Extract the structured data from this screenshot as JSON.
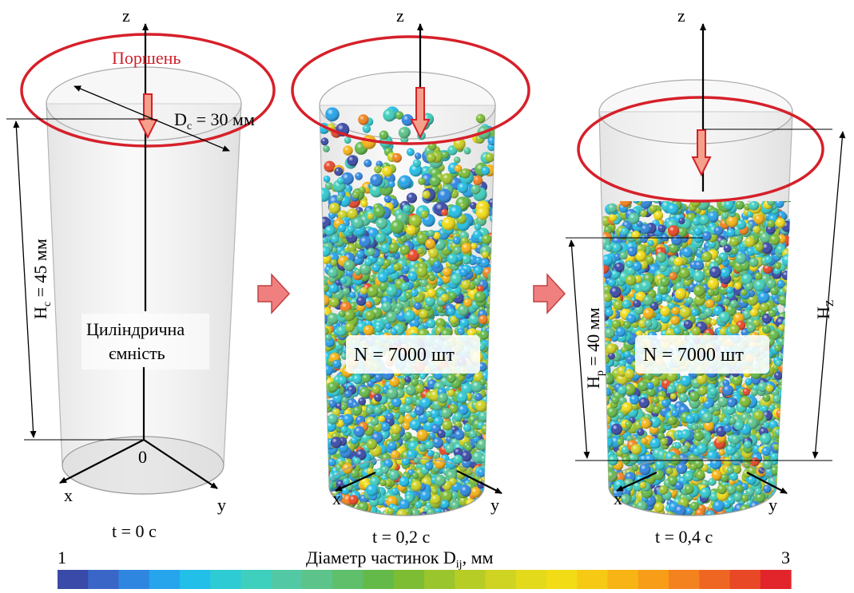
{
  "panels": [
    {
      "id": "t0",
      "time_label": "t = 0 с",
      "piston_label": "Поршень",
      "diameter_label": "D",
      "diameter_sub": "c",
      "diameter_value": " = 30 мм",
      "height_label": "H",
      "height_sub": "c",
      "height_value": " = 45 мм",
      "container_label_line1": "Циліндрична",
      "container_label_line2": "ємність",
      "origin_label": "0",
      "axis_z": "z",
      "axis_x": "x",
      "axis_y": "y"
    },
    {
      "id": "t02",
      "time_label": "t = 0,2 с",
      "count_label": "N = 7000 шт",
      "axis_z": "z",
      "axis_x": "x",
      "axis_y": "y"
    },
    {
      "id": "t04",
      "time_label": "t = 0,4 с",
      "count_label": "N = 7000 шт",
      "packed_height_label": "H",
      "packed_height_sub": "p",
      "packed_height_value": " = 40 мм",
      "piston_height_label": "H",
      "piston_height_sub": "Z",
      "axis_z": "z",
      "axis_x": "x",
      "axis_y": "y"
    }
  ],
  "colorbar": {
    "min_label": "1",
    "max_label": "3",
    "title": "Діаметр частинок D",
    "title_sub": "ij",
    "title_unit": ", мм",
    "colors": [
      "#3a4aa8",
      "#3a66c8",
      "#2f86e0",
      "#26a4ec",
      "#22bfe8",
      "#2fcbd4",
      "#3fcfbd",
      "#52c9a4",
      "#5cc48a",
      "#5fbf6a",
      "#63ba48",
      "#7cbd34",
      "#9ac52c",
      "#b6cd26",
      "#cfd322",
      "#e4da1c",
      "#f2dc16",
      "#f6c914",
      "#f7b414",
      "#f79d18",
      "#f4821e",
      "#ef6622",
      "#e84826",
      "#e2252a"
    ]
  },
  "colors": {
    "piston": "#d6202a",
    "arrow_fill": "#f4a08a",
    "cylinder": "#dcdcdc"
  }
}
